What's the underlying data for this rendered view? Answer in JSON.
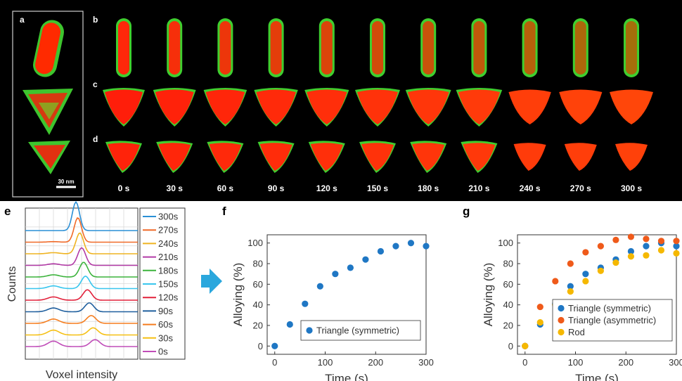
{
  "panels": {
    "a": "a",
    "b": "b",
    "c": "c",
    "d": "d",
    "e": "e",
    "f": "f",
    "g": "g"
  },
  "scalebar_label": "30 nm",
  "time_labels": [
    "0 s",
    "30 s",
    "60 s",
    "90 s",
    "120 s",
    "150 s",
    "180 s",
    "210 s",
    "240 s",
    "270 s",
    "300 s"
  ],
  "colors": {
    "gold": "#ff2000",
    "silver": "#22dd22",
    "blue": "#1f77c4",
    "orange": "#ef5a1a",
    "yellow": "#f5b800"
  },
  "chart_data": [
    {
      "type": "line",
      "panel": "e",
      "xlabel": "Voxel intensity",
      "ylabel": "Counts",
      "legend": [
        "300s",
        "270s",
        "240s",
        "210s",
        "180s",
        "150s",
        "120s",
        "90s",
        "60s",
        "30s",
        "0s"
      ],
      "series_colors": [
        "#2a8fd6",
        "#f06a28",
        "#efb320",
        "#b23aa6",
        "#3cb33c",
        "#38c6ee",
        "#e2203a",
        "#1f5f9e",
        "#f57d1f",
        "#f5c013",
        "#c04db8"
      ]
    },
    {
      "type": "scatter",
      "panel": "f",
      "xlabel": "Time (s)",
      "ylabel": "Alloying (%)",
      "xlim": [
        -15,
        300
      ],
      "ylim": [
        -8,
        108
      ],
      "xticks": [
        0,
        100,
        200,
        300
      ],
      "yticks": [
        0,
        20,
        40,
        60,
        80,
        100
      ],
      "series": [
        {
          "name": "Triangle (symmetric)",
          "color": "#1f77c4",
          "x": [
            0,
            30,
            60,
            90,
            120,
            150,
            180,
            210,
            240,
            270,
            300
          ],
          "y": [
            0,
            21,
            41,
            58,
            70,
            76,
            84,
            92,
            97,
            100,
            97
          ]
        }
      ]
    },
    {
      "type": "scatter",
      "panel": "g",
      "xlabel": "Time (s)",
      "ylabel": "Alloying (%)",
      "xlim": [
        -15,
        300
      ],
      "ylim": [
        -8,
        108
      ],
      "xticks": [
        0,
        100,
        200,
        "300"
      ],
      "yticks": [
        0,
        20,
        40,
        60,
        80,
        100
      ],
      "series": [
        {
          "name": "Triangle (symmetric)",
          "color": "#1f77c4",
          "x": [
            0,
            30,
            60,
            90,
            120,
            150,
            180,
            210,
            240,
            270,
            300
          ],
          "y": [
            0,
            21,
            41,
            58,
            70,
            76,
            84,
            92,
            97,
            100,
            97
          ]
        },
        {
          "name": "Triangle (asymmetric)",
          "color": "#ef5a1a",
          "x": [
            0,
            30,
            60,
            90,
            120,
            150,
            180,
            210,
            240,
            270,
            300
          ],
          "y": [
            0,
            38,
            63,
            80,
            91,
            97,
            103,
            106,
            104,
            102,
            102
          ]
        },
        {
          "name": "Rod",
          "color": "#f5b800",
          "x": [
            0,
            30,
            60,
            90,
            120,
            150,
            180,
            210,
            240,
            270,
            300
          ],
          "y": [
            0,
            23,
            40,
            53,
            63,
            73,
            81,
            87,
            88,
            93,
            90
          ]
        }
      ]
    }
  ]
}
